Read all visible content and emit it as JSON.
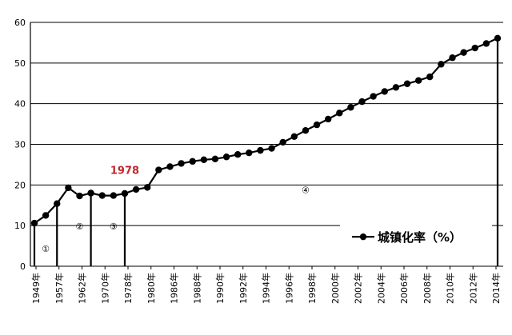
{
  "chart_data": {
    "type": "line",
    "title": "",
    "xlabel": "",
    "ylabel": "",
    "ylim": [
      0,
      60
    ],
    "yticks": [
      0,
      10,
      20,
      30,
      40,
      50,
      60
    ],
    "grid": "horizontal",
    "legend": {
      "placement": "bottom-right",
      "label": "城镇化率（%）"
    },
    "xticks": [
      "1949年",
      "1957年",
      "1962年",
      "1970年",
      "1978年",
      "1980年",
      "1986年",
      "1988年",
      "1990年",
      "1992年",
      "1994年",
      "1996年",
      "1998年",
      "2000年",
      "2002年",
      "2004年",
      "2006年",
      "2008年",
      "2010年",
      "2012年",
      "2014年"
    ],
    "series": [
      {
        "name": "城镇化率（%）",
        "values": [
          10.6,
          12.5,
          15.4,
          19.3,
          17.3,
          18.0,
          17.4,
          17.4,
          17.9,
          18.9,
          19.4,
          23.7,
          24.5,
          25.3,
          25.8,
          26.2,
          26.4,
          26.9,
          27.5,
          27.9,
          28.5,
          29.0,
          30.5,
          31.9,
          33.4,
          34.8,
          36.2,
          37.7,
          39.1,
          40.5,
          41.8,
          43.0,
          44.0,
          44.9,
          45.7,
          46.6,
          49.7,
          51.3,
          52.6,
          53.7,
          54.8,
          56.1
        ]
      }
    ],
    "phase_dividers": [
      {
        "after_point": 0,
        "from": 0,
        "to": 10.6
      },
      {
        "after_point": 2,
        "from": 0,
        "to": 15.4
      },
      {
        "after_point": 5,
        "from": 0,
        "to": 18.0
      },
      {
        "after_point": 8,
        "from": 0,
        "to": 17.9
      },
      {
        "after_point": 41,
        "from": 0,
        "to": 56.1
      }
    ],
    "phase_labels": [
      {
        "text": "①",
        "near_point": 1,
        "y": 4.5
      },
      {
        "text": "②",
        "near_point": 4,
        "y": 10
      },
      {
        "text": "③",
        "near_point": 7,
        "y": 10
      },
      {
        "text": "④",
        "near_point": 24,
        "y": 19
      }
    ],
    "annotations": [
      {
        "text": "1978",
        "near_point": 8,
        "y": 22.7
      }
    ]
  }
}
